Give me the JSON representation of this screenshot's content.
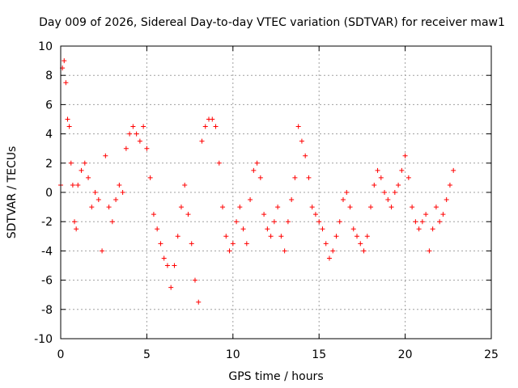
{
  "chart_data": {
    "type": "scatter",
    "title": "Day 009 of 2026, Sidereal Day-to-day VTEC variation (SDTVAR) for receiver maw1",
    "xlabel": "GPS time / hours",
    "ylabel": "SDTVAR / TECUs",
    "xlim": [
      0,
      25
    ],
    "ylim": [
      -10,
      10
    ],
    "xticks": [
      "0",
      "5",
      "10",
      "15",
      "20",
      "25"
    ],
    "yticks": [
      "-10",
      "-8",
      "-6",
      "-4",
      "-2",
      "0",
      "2",
      "4",
      "6",
      "8",
      "10"
    ],
    "grid": true,
    "marker": "+",
    "color": "#ff0000",
    "series": [
      {
        "name": "SDTVAR",
        "x": [
          0.0,
          0.1,
          0.2,
          0.3,
          0.4,
          0.5,
          0.6,
          0.7,
          0.8,
          0.9,
          1.0,
          1.2,
          1.4,
          1.6,
          1.8,
          2.0,
          2.2,
          2.4,
          2.6,
          2.8,
          3.0,
          3.2,
          3.4,
          3.6,
          3.8,
          4.0,
          4.2,
          4.4,
          4.6,
          4.8,
          5.0,
          5.2,
          5.4,
          5.6,
          5.8,
          6.0,
          6.2,
          6.4,
          6.6,
          6.8,
          7.0,
          7.2,
          7.4,
          7.6,
          7.8,
          8.0,
          8.2,
          8.4,
          8.6,
          8.8,
          9.0,
          9.2,
          9.4,
          9.6,
          9.8,
          10.0,
          10.2,
          10.4,
          10.6,
          10.8,
          11.0,
          11.2,
          11.4,
          11.6,
          11.8,
          12.0,
          12.2,
          12.4,
          12.6,
          12.8,
          13.0,
          13.2,
          13.4,
          13.6,
          13.8,
          14.0,
          14.2,
          14.4,
          14.6,
          14.8,
          15.0,
          15.2,
          15.4,
          15.6,
          15.8,
          16.0,
          16.2,
          16.4,
          16.6,
          16.8,
          17.0,
          17.2,
          17.4,
          17.6,
          17.8,
          18.0,
          18.2,
          18.4,
          18.6,
          18.8,
          19.0,
          19.2,
          19.4,
          19.6,
          19.8,
          20.0,
          20.2,
          20.4,
          20.6,
          20.8,
          21.0,
          21.2,
          21.4,
          21.6,
          21.8,
          22.0,
          22.2,
          22.4,
          22.6,
          22.8
        ],
        "y": [
          0.5,
          8.5,
          9.0,
          7.5,
          5.0,
          4.5,
          2.0,
          0.5,
          -2.0,
          -2.5,
          0.5,
          1.5,
          2.0,
          1.0,
          -1.0,
          0.0,
          -0.5,
          -4.0,
          2.5,
          -1.0,
          -2.0,
          -0.5,
          0.5,
          0.0,
          3.0,
          4.0,
          4.5,
          4.0,
          3.5,
          4.5,
          3.0,
          1.0,
          -1.5,
          -2.5,
          -3.5,
          -4.5,
          -5.0,
          -6.5,
          -5.0,
          -3.0,
          -1.0,
          0.5,
          -1.5,
          -3.5,
          -6.0,
          -7.5,
          3.5,
          4.5,
          5.0,
          5.0,
          4.5,
          2.0,
          -1.0,
          -3.0,
          -4.0,
          -3.5,
          -2.0,
          -1.0,
          -2.5,
          -3.5,
          -0.5,
          1.5,
          2.0,
          1.0,
          -1.5,
          -2.5,
          -3.0,
          -2.0,
          -1.0,
          -3.0,
          -4.0,
          -2.0,
          -0.5,
          1.0,
          4.5,
          3.5,
          2.5,
          1.0,
          -1.0,
          -1.5,
          -2.0,
          -2.5,
          -3.5,
          -4.5,
          -4.0,
          -3.0,
          -2.0,
          -0.5,
          0.0,
          -1.0,
          -2.5,
          -3.0,
          -3.5,
          -4.0,
          -3.0,
          -1.0,
          0.5,
          1.5,
          1.0,
          0.0,
          -0.5,
          -1.0,
          0.0,
          0.5,
          1.5,
          2.5,
          1.0,
          -1.0,
          -2.0,
          -2.5,
          -2.0,
          -1.5,
          -4.0,
          -2.5,
          -1.0,
          -2.0,
          -1.5,
          -0.5,
          0.5,
          1.5
        ]
      }
    ]
  }
}
